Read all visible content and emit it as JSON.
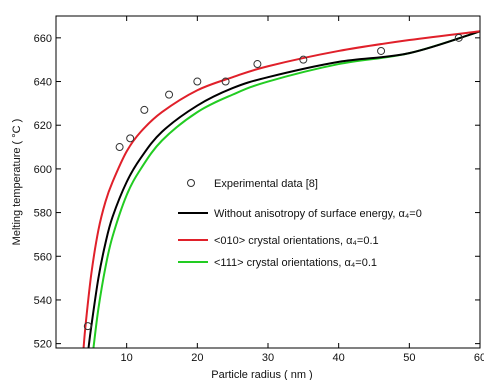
{
  "chart_data": {
    "type": "line",
    "xlabel": "Particle radius ( nm )",
    "ylabel": "Melting temperature ( °C )",
    "xlim": [
      0,
      60
    ],
    "ylim": [
      518,
      670
    ],
    "x_ticks": [
      10,
      20,
      30,
      40,
      50,
      60
    ],
    "y_ticks": [
      520,
      540,
      560,
      580,
      600,
      620,
      640,
      660
    ],
    "legend_position": "center-right",
    "series": [
      {
        "name": "Experimental data [8]",
        "style": "markers",
        "marker": "circle-open",
        "color": "#333333",
        "x": [
          4.5,
          9.0,
          10.5,
          12.5,
          16.0,
          20.0,
          24.0,
          28.5,
          35.0,
          46.0,
          57.0
        ],
        "y": [
          528,
          610,
          614,
          627,
          634,
          640,
          640,
          648,
          650,
          654,
          660
        ]
      },
      {
        "name": "Without anisotropy of surface energy, α₄=0",
        "style": "line",
        "color": "#000000",
        "x": [
          4.6,
          5,
          6,
          7,
          8,
          10,
          12,
          15,
          20,
          25,
          30,
          40,
          50,
          60
        ],
        "y": [
          518,
          528,
          550,
          566,
          578,
          594,
          605,
          617,
          629,
          637,
          642,
          649,
          653,
          663
        ]
      },
      {
        "name": "<010> crystal orientations, α₄=0.1",
        "style": "line",
        "color": "#e0202a",
        "x": [
          3.9,
          4.2,
          5,
          6,
          7,
          8,
          10,
          12,
          15,
          20,
          25,
          30,
          40,
          50,
          60
        ],
        "y": [
          518,
          529,
          552,
          572,
          585,
          594,
          608,
          617,
          626,
          636,
          642,
          647,
          654,
          659,
          663
        ]
      },
      {
        "name": "<111> crystal orientations, α₄=0.1",
        "style": "line",
        "color": "#22cc22",
        "x": [
          5.3,
          6,
          7,
          8,
          10,
          12,
          15,
          20,
          25,
          30,
          40,
          50,
          60
        ],
        "y": [
          518,
          536,
          555,
          569,
          588,
          600,
          613,
          626,
          634,
          640,
          648,
          653,
          663
        ]
      }
    ]
  }
}
